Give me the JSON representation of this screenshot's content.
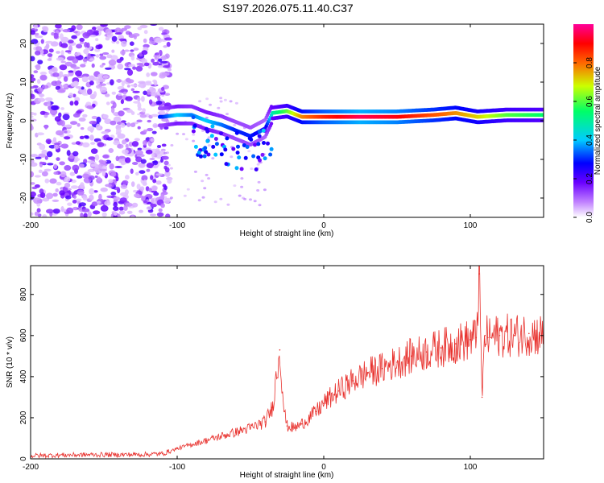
{
  "title": "S197.2026.075.11.40.C37",
  "chart_data": [
    {
      "type": "heatmap",
      "name": "spectrogram",
      "xlabel": "Height of straight line (km)",
      "ylabel": "Frequency (Hz)",
      "xlim": [
        -200,
        150
      ],
      "ylim": [
        -25,
        25
      ],
      "xticks": [
        -200,
        -100,
        0,
        100
      ],
      "yticks": [
        -20,
        -10,
        0,
        10,
        20
      ],
      "colorbar": {
        "label": "Normalized spectral amplitude",
        "range": [
          0,
          1
        ],
        "ticks": [
          0.0,
          0.2,
          0.4,
          0.6,
          0.8
        ],
        "tick_labels": [
          "0.0",
          "0.2",
          "0.4",
          "0.6",
          "0.8"
        ],
        "colormap": [
          "#ffffff",
          "#c080ff",
          "#6a00ff",
          "#0000ff",
          "#00ccff",
          "#00ff66",
          "#ccff00",
          "#ff6600",
          "#ff0000",
          "#ff0099"
        ]
      },
      "ridge": [
        {
          "x": -110,
          "freq": 1.0,
          "amp": 0.35
        },
        {
          "x": -100,
          "freq": 1.5,
          "amp": 0.45
        },
        {
          "x": -90,
          "freq": 1.5,
          "amp": 0.4
        },
        {
          "x": -80,
          "freq": 0.0,
          "amp": 0.45
        },
        {
          "x": -70,
          "freq": -1.0,
          "amp": 0.4
        },
        {
          "x": -60,
          "freq": -2.5,
          "amp": 0.35
        },
        {
          "x": -50,
          "freq": -4.0,
          "amp": 0.35
        },
        {
          "x": -40,
          "freq": -2.0,
          "amp": 0.3
        },
        {
          "x": -35,
          "freq": 2.0,
          "amp": 0.5
        },
        {
          "x": -25,
          "freq": 2.5,
          "amp": 0.6
        },
        {
          "x": -15,
          "freq": 1.0,
          "amp": 0.75
        },
        {
          "x": 0,
          "freq": 1.0,
          "amp": 0.85
        },
        {
          "x": 25,
          "freq": 1.0,
          "amp": 0.95
        },
        {
          "x": 50,
          "freq": 1.0,
          "amp": 0.9
        },
        {
          "x": 75,
          "freq": 1.5,
          "amp": 0.8
        },
        {
          "x": 90,
          "freq": 2.0,
          "amp": 0.75
        },
        {
          "x": 105,
          "freq": 1.0,
          "amp": 0.7
        },
        {
          "x": 125,
          "freq": 1.5,
          "amp": 0.6
        },
        {
          "x": 150,
          "freq": 1.5,
          "amp": 0.55
        }
      ]
    },
    {
      "type": "line",
      "name": "snr",
      "xlabel": "Height of straight line (km)",
      "ylabel": "SNR (10 * v/v)",
      "xlim": [
        -200,
        150
      ],
      "ylim": [
        0,
        940
      ],
      "xticks": [
        -200,
        -100,
        0,
        100
      ],
      "yticks": [
        0,
        200,
        400,
        600,
        800
      ],
      "color": "#e8302c",
      "series": [
        {
          "name": "SNR",
          "x": [
            -200,
            -180,
            -160,
            -140,
            -120,
            -110,
            -100,
            -90,
            -80,
            -70,
            -60,
            -50,
            -40,
            -35,
            -30,
            -27,
            -25,
            -20,
            -15,
            -10,
            -5,
            0,
            10,
            20,
            30,
            40,
            50,
            60,
            70,
            80,
            90,
            100,
            104,
            106,
            108,
            110,
            112,
            120,
            130,
            140,
            150
          ],
          "y": [
            15,
            18,
            20,
            20,
            22,
            25,
            50,
            70,
            90,
            110,
            130,
            150,
            180,
            250,
            530,
            230,
            160,
            150,
            170,
            200,
            230,
            270,
            330,
            380,
            420,
            440,
            470,
            500,
            520,
            540,
            560,
            580,
            590,
            900,
            300,
            600,
            590,
            600,
            600,
            610,
            600
          ]
        }
      ]
    }
  ]
}
